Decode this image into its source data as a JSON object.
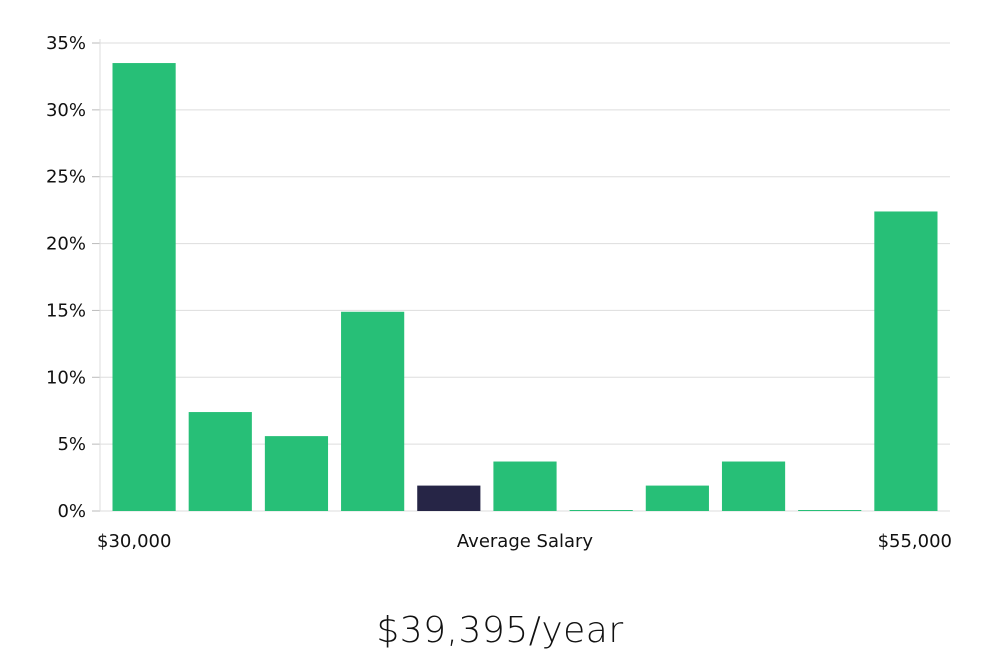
{
  "chart_data": {
    "type": "bar",
    "categories": [
      "1",
      "2",
      "3",
      "4",
      "5",
      "6",
      "7",
      "8",
      "9",
      "10",
      "11"
    ],
    "values": [
      33.5,
      7.4,
      5.6,
      14.9,
      1.9,
      3.7,
      0.05,
      1.9,
      3.7,
      0.05,
      22.4
    ],
    "highlight_index": 4,
    "ylim": [
      0,
      35
    ],
    "yticks": [
      0,
      5,
      10,
      15,
      20,
      25,
      30,
      35
    ],
    "ytick_suffix": "%",
    "x_min_label": "$30,000",
    "x_max_label": "$55,000",
    "xlabel": "Average Salary",
    "grid": true,
    "colors": {
      "bar": "#27bf77",
      "highlight": "#262546",
      "grid": "#dddddd"
    }
  },
  "salary_label": "$39,395/year"
}
